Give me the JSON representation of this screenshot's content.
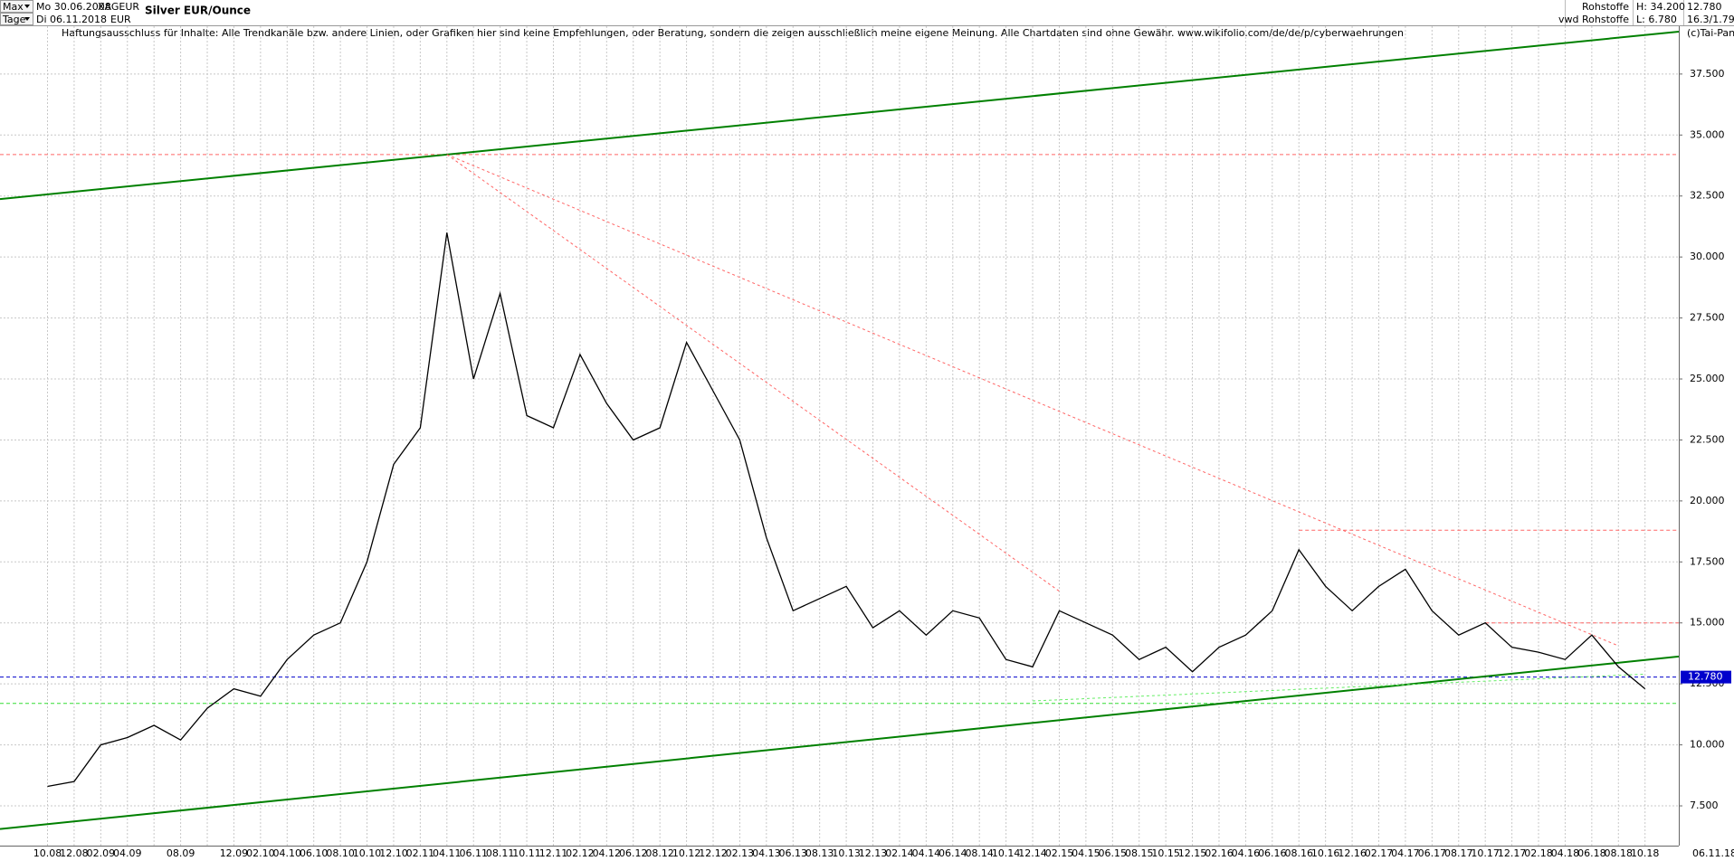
{
  "header": {
    "range": "Max",
    "period": "Tage",
    "from_date": "Mo 30.06.2008",
    "to_date": "Di 06.11.2018",
    "symbol": "XAGEUR",
    "currency": "EUR",
    "title": "Silver EUR/Ounce",
    "disclaimer": "Haftungsausschluss für Inhalte: Alle Trendkanäle bzw. andere Linien, oder Grafiken hier sind keine Empfehlungen, oder Beratung, sondern die zeigen ausschließlich meine eigene Meinung. Alle Chartdaten sind ohne Gewähr.  www.wikifolio.com/de/de/p/cyberwaehrungen",
    "market": "Rohstoffe",
    "source": "vwd Rohstoffe",
    "high": "H: 34.200",
    "low": "L: 6.780",
    "last": "12.780",
    "extra": "16.3/1.790",
    "copyright": "(c)Tai-Pan",
    "end_date": "06.11.18"
  },
  "chart_data": {
    "type": "line",
    "color": "#000000",
    "categories": [
      "10.08",
      "12.08",
      "02.09",
      "04.09",
      null,
      "08.09",
      null,
      "12.09",
      "02.10",
      "04.10",
      "06.10",
      "08.10",
      "10.10",
      "12.10",
      "02.11",
      "04.11",
      "06.11",
      "08.11",
      "10.11",
      "12.11",
      "02.12",
      "04.12",
      "06.12",
      "08.12",
      "10.12",
      "12.12",
      "02.13",
      "04.13",
      "06.13",
      "08.13",
      "10.13",
      "12.13",
      "02.14",
      "04.14",
      "06.14",
      "08.14",
      "10.14",
      "12.14",
      "02.15",
      "04.15",
      "06.15",
      "08.15",
      "10.15",
      "12.15",
      "02.16",
      "04.16",
      "06.16",
      "08.16",
      "10.16",
      "12.16",
      "02.17",
      "04.17",
      "06.17",
      "08.17",
      "10.17",
      "12.17",
      "02.18",
      "04.18",
      "06.18",
      "08.18",
      "10.18"
    ],
    "values": [
      8.3,
      8.5,
      10.0,
      10.3,
      10.8,
      10.2,
      11.5,
      12.3,
      12.0,
      13.5,
      14.5,
      15.0,
      17.5,
      21.5,
      23.0,
      31.0,
      25.0,
      28.5,
      23.5,
      23.0,
      26.0,
      24.0,
      22.5,
      23.0,
      26.5,
      24.5,
      22.5,
      18.5,
      15.5,
      16.0,
      16.5,
      14.8,
      15.5,
      14.5,
      15.5,
      15.2,
      13.5,
      13.2,
      15.5,
      15.0,
      14.5,
      13.5,
      14.0,
      13.0,
      14.0,
      14.5,
      15.5,
      18.0,
      16.5,
      15.5,
      16.5,
      17.2,
      15.5,
      14.5,
      15.0,
      14.0,
      13.8,
      13.5,
      14.5,
      13.2,
      12.3
    ],
    "ylim": [
      5.87,
      39.46
    ],
    "yticks": [
      {
        "value": 7.5,
        "label": "7.500"
      },
      {
        "value": 10,
        "label": "10.000"
      },
      {
        "value": 12.5,
        "label": "12.500"
      },
      {
        "value": 15,
        "label": "15.000"
      },
      {
        "value": 17.5,
        "label": "17.500"
      },
      {
        "value": 20,
        "label": "20.000"
      },
      {
        "value": 22.5,
        "label": "22.500"
      },
      {
        "value": 25,
        "label": "25.000"
      },
      {
        "value": 27.5,
        "label": "27.500"
      },
      {
        "value": 30,
        "label": "30.000"
      },
      {
        "value": 32.5,
        "label": "32.500"
      },
      {
        "value": 35,
        "label": "35.000"
      },
      {
        "value": 37.5,
        "label": "37.500"
      }
    ],
    "grid": true,
    "last_price": {
      "value": 12.78,
      "label": "12.780",
      "color": "#0000cc"
    },
    "trendlines": [
      {
        "x": [
          "04.11",
          "10.18"
        ],
        "y": [
          34.2,
          39.1
        ],
        "color": "#008000",
        "dash": false
      },
      {
        "x": [
          "10.08",
          "10.18"
        ],
        "y": [
          6.75,
          13.48
        ],
        "color": "#008000",
        "dash": false
      },
      {
        "x": [
          "04.11",
          "08.18"
        ],
        "y": [
          34.2,
          14.06
        ],
        "color": "#ff6666",
        "dash": true
      },
      {
        "x": [
          "04.11",
          "02.15"
        ],
        "y": [
          34.2,
          16.3
        ],
        "color": "#ff6666",
        "dash": true
      },
      {
        "x": [
          "12.14",
          "10.18"
        ],
        "y": [
          11.8,
          12.9
        ],
        "color": "#66ee66",
        "dash": true
      }
    ],
    "hlines": [
      {
        "value": 34.2,
        "color": "#ff6666",
        "start": "10.08"
      },
      {
        "value": 18.8,
        "color": "#ff6666",
        "start": "08.16"
      },
      {
        "value": 15.0,
        "color": "#ff6666",
        "start": "10.17"
      },
      {
        "value": 12.78,
        "color": "#0000cc",
        "start": "10.08"
      },
      {
        "value": 11.7,
        "color": "#33dd33",
        "start": "10.08"
      }
    ]
  }
}
